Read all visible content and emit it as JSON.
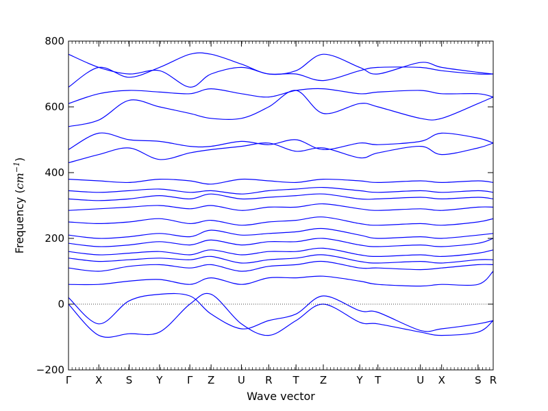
{
  "chart_data": {
    "type": "line",
    "title": "",
    "xlabel": "Wave vector",
    "ylabel_prefix": "Frequency (",
    "ylabel_unit": "cm",
    "ylabel_exp": "−1",
    "ylabel_suffix": ")",
    "ylim": [
      -200,
      800
    ],
    "yticks": [
      -200,
      0,
      200,
      400,
      600,
      800
    ],
    "ytick_labels": [
      "−200",
      "0",
      "200",
      "400",
      "600",
      "800"
    ],
    "xlim": [
      0,
      14
    ],
    "kpoints": [
      {
        "label": "Γ",
        "x": 0
      },
      {
        "label": "X",
        "x": 1
      },
      {
        "label": "S",
        "x": 2
      },
      {
        "label": "Y",
        "x": 3
      },
      {
        "label": "Γ",
        "x": 4
      },
      {
        "label": "Z",
        "x": 4.7
      },
      {
        "label": "U",
        "x": 5.7
      },
      {
        "label": "R",
        "x": 6.6
      },
      {
        "label": "T",
        "x": 7.5
      },
      {
        "label": "Z",
        "x": 8.4
      },
      {
        "label": "Y",
        "x": 9.6
      },
      {
        "label": "T",
        "x": 10.2
      },
      {
        "label": "U",
        "x": 11.6
      },
      {
        "label": "X",
        "x": 12.3
      },
      {
        "label": "S",
        "x": 13.5
      },
      {
        "label": "R",
        "x": 14
      }
    ],
    "zero_line": true,
    "series_color": "#0000ff",
    "series": [
      {
        "x": [
          0,
          1,
          2,
          3,
          4,
          4.7,
          5.7,
          6.6,
          7.5,
          8.4,
          9.6,
          10.2,
          11.6,
          12.3,
          13.5,
          14
        ],
        "y": [
          0,
          -95,
          -90,
          -85,
          0,
          30,
          -60,
          -95,
          -50,
          0,
          -55,
          -60,
          -85,
          -95,
          -85,
          -50
        ]
      },
      {
        "x": [
          0,
          1,
          2,
          3,
          4,
          4.7,
          5.7,
          6.6,
          7.5,
          8.4,
          9.6,
          10.2,
          11.6,
          12.3,
          13.5,
          14
        ],
        "y": [
          20,
          -60,
          10,
          30,
          25,
          -30,
          -75,
          -50,
          -30,
          25,
          -20,
          -25,
          -80,
          -75,
          -60,
          -50
        ]
      },
      {
        "x": [
          0,
          1,
          2,
          3,
          4,
          4.7,
          5.7,
          6.6,
          7.5,
          8.4,
          9.6,
          10.2,
          11.6,
          12.3,
          13.5,
          14
        ],
        "y": [
          60,
          60,
          70,
          75,
          60,
          80,
          60,
          80,
          80,
          85,
          70,
          60,
          55,
          60,
          60,
          100
        ]
      },
      {
        "x": [
          0,
          1,
          2,
          3,
          4,
          4.7,
          5.7,
          6.6,
          7.5,
          8.4,
          9.6,
          10.2,
          11.6,
          12.3,
          13.5,
          14
        ],
        "y": [
          110,
          100,
          115,
          120,
          110,
          120,
          100,
          115,
          120,
          130,
          110,
          110,
          105,
          110,
          120,
          120
        ]
      },
      {
        "x": [
          0,
          1,
          2,
          3,
          4,
          4.7,
          5.7,
          6.6,
          7.5,
          8.4,
          9.6,
          10.2,
          11.6,
          12.3,
          13.5,
          14
        ],
        "y": [
          140,
          130,
          135,
          140,
          135,
          145,
          125,
          135,
          140,
          150,
          130,
          125,
          130,
          125,
          135,
          135
        ]
      },
      {
        "x": [
          0,
          1,
          2,
          3,
          4,
          4.7,
          5.7,
          6.6,
          7.5,
          8.4,
          9.6,
          10.2,
          11.6,
          12.3,
          13.5,
          14
        ],
        "y": [
          160,
          150,
          155,
          160,
          150,
          165,
          150,
          160,
          160,
          170,
          150,
          145,
          150,
          145,
          155,
          165
        ]
      },
      {
        "x": [
          0,
          1,
          2,
          3,
          4,
          4.7,
          5.7,
          6.6,
          7.5,
          8.4,
          9.6,
          10.2,
          11.6,
          12.3,
          13.5,
          14
        ],
        "y": [
          185,
          175,
          180,
          190,
          180,
          195,
          180,
          190,
          190,
          200,
          180,
          175,
          180,
          175,
          185,
          200
        ]
      },
      {
        "x": [
          0,
          1,
          2,
          3,
          4,
          4.7,
          5.7,
          6.6,
          7.5,
          8.4,
          9.6,
          10.2,
          11.6,
          12.3,
          13.5,
          14
        ],
        "y": [
          210,
          200,
          205,
          215,
          205,
          225,
          210,
          215,
          220,
          230,
          210,
          200,
          205,
          200,
          210,
          215
        ]
      },
      {
        "x": [
          0,
          1,
          2,
          3,
          4,
          4.7,
          5.7,
          6.6,
          7.5,
          8.4,
          9.6,
          10.2,
          11.6,
          12.3,
          13.5,
          14
        ],
        "y": [
          250,
          245,
          250,
          260,
          245,
          255,
          240,
          250,
          255,
          265,
          245,
          240,
          245,
          240,
          250,
          260
        ]
      },
      {
        "x": [
          0,
          1,
          2,
          3,
          4,
          4.7,
          5.7,
          6.6,
          7.5,
          8.4,
          9.6,
          10.2,
          11.6,
          12.3,
          13.5,
          14
        ],
        "y": [
          285,
          290,
          295,
          300,
          290,
          300,
          285,
          295,
          295,
          305,
          290,
          285,
          290,
          285,
          295,
          295
        ]
      },
      {
        "x": [
          0,
          1,
          2,
          3,
          4,
          4.7,
          5.7,
          6.6,
          7.5,
          8.4,
          9.6,
          10.2,
          11.6,
          12.3,
          13.5,
          14
        ],
        "y": [
          320,
          315,
          320,
          330,
          320,
          335,
          320,
          325,
          330,
          335,
          320,
          320,
          325,
          320,
          325,
          320
        ]
      },
      {
        "x": [
          0,
          1,
          2,
          3,
          4,
          4.7,
          5.7,
          6.6,
          7.5,
          8.4,
          9.6,
          10.2,
          11.6,
          12.3,
          13.5,
          14
        ],
        "y": [
          345,
          340,
          345,
          350,
          340,
          345,
          335,
          345,
          350,
          355,
          345,
          340,
          345,
          340,
          345,
          340
        ]
      },
      {
        "x": [
          0,
          1,
          2,
          3,
          4,
          4.7,
          5.7,
          6.6,
          7.5,
          8.4,
          9.6,
          10.2,
          11.6,
          12.3,
          13.5,
          14
        ],
        "y": [
          380,
          375,
          370,
          380,
          375,
          365,
          380,
          375,
          370,
          380,
          375,
          370,
          375,
          370,
          375,
          370
        ]
      },
      {
        "x": [
          0,
          1,
          2,
          3,
          4,
          4.7,
          5.7,
          6.6,
          7.5,
          8.4,
          9.6,
          10.2,
          11.6,
          12.3,
          13.5,
          14
        ],
        "y": [
          430,
          455,
          475,
          440,
          460,
          470,
          480,
          490,
          465,
          475,
          445,
          460,
          480,
          455,
          475,
          490
        ]
      },
      {
        "x": [
          0,
          1,
          2,
          3,
          4,
          4.7,
          5.7,
          6.6,
          7.5,
          8.4,
          9.6,
          10.2,
          11.6,
          12.3,
          13.5,
          14
        ],
        "y": [
          470,
          520,
          500,
          495,
          480,
          480,
          495,
          485,
          500,
          470,
          490,
          485,
          495,
          520,
          505,
          490
        ]
      },
      {
        "x": [
          0,
          1,
          2,
          3,
          4,
          4.7,
          5.7,
          6.6,
          7.5,
          8.4,
          9.6,
          10.2,
          11.6,
          12.3,
          13.5,
          14
        ],
        "y": [
          540,
          560,
          620,
          600,
          580,
          565,
          565,
          600,
          650,
          580,
          610,
          600,
          565,
          565,
          610,
          630
        ]
      },
      {
        "x": [
          0,
          1,
          2,
          3,
          4,
          4.7,
          5.7,
          6.6,
          7.5,
          8.4,
          9.6,
          10.2,
          11.6,
          12.3,
          13.5,
          14
        ],
        "y": [
          610,
          640,
          650,
          645,
          640,
          655,
          640,
          630,
          650,
          655,
          640,
          645,
          650,
          640,
          640,
          630
        ]
      },
      {
        "x": [
          0,
          1,
          2,
          3,
          4,
          4.7,
          5.7,
          6.6,
          7.5,
          8.4,
          9.6,
          10.2,
          11.6,
          12.3,
          13.5,
          14
        ],
        "y": [
          660,
          720,
          690,
          720,
          760,
          760,
          730,
          700,
          710,
          760,
          720,
          700,
          735,
          720,
          705,
          700
        ]
      },
      {
        "x": [
          0,
          1,
          2,
          3,
          4,
          4.7,
          5.7,
          6.6,
          7.5,
          8.4,
          9.6,
          10.2,
          11.6,
          12.3,
          13.5,
          14
        ],
        "y": [
          760,
          720,
          700,
          710,
          660,
          700,
          720,
          700,
          700,
          680,
          710,
          720,
          720,
          710,
          700,
          700
        ]
      }
    ]
  }
}
